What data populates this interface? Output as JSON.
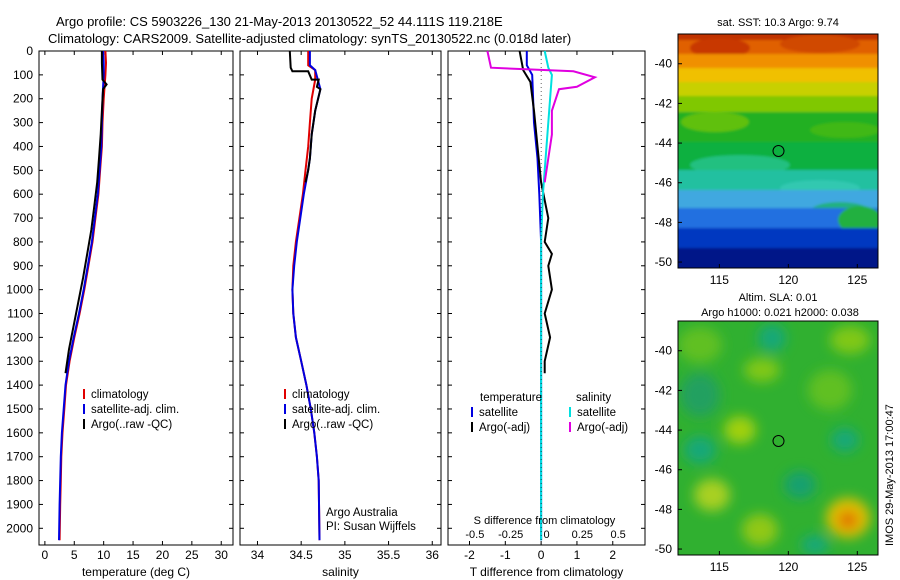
{
  "title_line1": "Argo profile: CS 5903226_130 21-May-2013 20130522_52 44.111S 119.218E",
  "title_line2": "Climatology: CARS2009. Satellite-adjusted climatology: synTS_20130522.nc (0.018d later)",
  "timestamp": "IMOS 29-May-2013 17:00:47",
  "colors": {
    "climatology": "#e00000",
    "satellite": "#0000e0",
    "argo": "#000000",
    "sal_satellite": "#00e0e0",
    "sal_argo": "#e000e0"
  },
  "chart_data": [
    {
      "type": "line",
      "id": "temperature",
      "xlabel": "temperature (deg C)",
      "ylabel": "",
      "xlim": [
        -1,
        32
      ],
      "ylim": [
        2070,
        0
      ],
      "xticks": [
        0,
        5,
        10,
        15,
        20,
        25,
        30
      ],
      "yticks": [
        0,
        100,
        200,
        300,
        400,
        500,
        600,
        700,
        800,
        900,
        1000,
        1100,
        1200,
        1300,
        1400,
        1500,
        1600,
        1700,
        1800,
        1900,
        2000
      ],
      "legend": [
        "climatology",
        "satellite-adj. clim.",
        "Argo(..raw -QC)"
      ],
      "series": [
        {
          "name": "climatology",
          "color": "#e00000",
          "x": [
            10.3,
            10.4,
            10.3,
            10.0,
            9.8,
            9.7,
            9.4,
            9.1,
            8.6,
            8.1,
            7.4,
            6.7,
            5.9,
            5.0,
            4.2,
            3.6,
            3.3,
            3.0,
            2.8,
            2.7,
            2.6,
            2.5
          ],
          "y": [
            0,
            50,
            100,
            200,
            300,
            400,
            500,
            600,
            700,
            800,
            900,
            1000,
            1100,
            1200,
            1300,
            1400,
            1500,
            1600,
            1700,
            1800,
            1900,
            2050
          ]
        },
        {
          "name": "satellite-adj. clim.",
          "color": "#0000e0",
          "x": [
            9.9,
            10.0,
            10.0,
            9.8,
            9.7,
            9.6,
            9.3,
            9.0,
            8.5,
            8.0,
            7.3,
            6.6,
            5.8,
            4.9,
            4.1,
            3.5,
            3.2,
            2.9,
            2.7,
            2.6,
            2.5,
            2.4
          ],
          "y": [
            0,
            50,
            100,
            200,
            300,
            400,
            500,
            600,
            700,
            800,
            900,
            1000,
            1100,
            1200,
            1300,
            1400,
            1500,
            1600,
            1700,
            1800,
            1900,
            2050
          ]
        },
        {
          "name": "Argo(..raw -QC)",
          "color": "#000000",
          "x": [
            9.7,
            9.7,
            9.8,
            10.5,
            9.9,
            9.7,
            9.5,
            9.2,
            8.9,
            8.4,
            7.9,
            7.2,
            6.5,
            5.7,
            4.9,
            4.1,
            3.5
          ],
          "y": [
            0,
            50,
            120,
            140,
            160,
            250,
            350,
            450,
            550,
            650,
            750,
            850,
            950,
            1050,
            1150,
            1250,
            1350
          ]
        }
      ]
    },
    {
      "type": "line",
      "id": "salinity",
      "xlabel": "salinity",
      "ylabel": "",
      "xlim": [
        33.8,
        36.1
      ],
      "ylim": [
        2070,
        0
      ],
      "xticks": [
        34,
        34.5,
        35,
        35.5,
        36
      ],
      "xticklabels": [
        "34",
        "34.5",
        "35",
        "35.5",
        "36"
      ],
      "legend": [
        "climatology",
        "satellite-adj. clim.",
        "Argo(..raw -QC)"
      ],
      "annotation": [
        "Argo Australia",
        "PI: Susan Wijffels"
      ],
      "series": [
        {
          "name": "climatology",
          "color": "#e00000",
          "x": [
            34.58,
            34.58,
            34.66,
            34.66,
            34.62,
            34.6,
            34.58,
            34.55,
            34.52,
            34.48,
            34.44,
            34.41,
            34.4,
            34.41,
            34.44,
            34.5,
            34.56,
            34.61,
            34.65,
            34.68,
            34.7,
            34.71
          ],
          "y": [
            0,
            60,
            80,
            120,
            200,
            300,
            400,
            500,
            600,
            700,
            800,
            900,
            1000,
            1100,
            1200,
            1300,
            1400,
            1500,
            1600,
            1700,
            1800,
            2050
          ]
        },
        {
          "name": "satellite-adj. clim.",
          "color": "#0000e0",
          "x": [
            34.6,
            34.6,
            34.66,
            34.72,
            34.66,
            34.62,
            34.6,
            34.57,
            34.53,
            34.49,
            34.45,
            34.42,
            34.4,
            34.41,
            34.44,
            34.5,
            34.56,
            34.61,
            34.65,
            34.68,
            34.7,
            34.71
          ],
          "y": [
            0,
            60,
            80,
            160,
            250,
            350,
            450,
            520,
            600,
            700,
            800,
            900,
            1000,
            1100,
            1200,
            1300,
            1400,
            1500,
            1600,
            1700,
            1800,
            2050
          ]
        },
        {
          "name": "Argo(..raw -QC)",
          "color": "#000000",
          "x": [
            34.37,
            34.38,
            34.4,
            34.58,
            34.62,
            34.7,
            34.68,
            34.72,
            34.66,
            34.62,
            34.6,
            34.58,
            34.55
          ],
          "y": [
            0,
            70,
            85,
            85,
            120,
            120,
            150,
            160,
            250,
            350,
            450,
            500,
            550
          ]
        }
      ]
    },
    {
      "type": "line",
      "id": "difference",
      "xlabel": "T difference from climatology",
      "top_label": "S difference from climatology",
      "xlim": [
        -2.6,
        2.9
      ],
      "ylim": [
        2070,
        0
      ],
      "xticks": [
        -2,
        -1,
        0,
        1,
        2
      ],
      "xticklabels": [
        "-2",
        "-1",
        "0",
        "1",
        "2"
      ],
      "top_ticks": [
        -0.5,
        -0.25,
        0,
        0.25,
        0.5
      ],
      "top_ticklabels": [
        "-0.5",
        "-0.25",
        "0",
        "0.25",
        "0.5"
      ],
      "legend_temperature": {
        "header": "temperature",
        "items": [
          "satellite",
          "Argo(-adj)"
        ]
      },
      "legend_salinity": {
        "header": "salinity",
        "items": [
          "satellite",
          "Argo(-adj)"
        ]
      },
      "series": [
        {
          "name": "T satellite",
          "color": "#0000e0",
          "x": [
            -0.4,
            -0.4,
            -0.25,
            -0.2,
            -0.1,
            -0.05,
            0.0,
            0.0,
            0.0,
            0.0
          ],
          "y": [
            0,
            60,
            100,
            300,
            450,
            600,
            800,
            1000,
            1400,
            2050
          ]
        },
        {
          "name": "T Argo(-adj)",
          "color": "#000000",
          "x": [
            -0.6,
            -0.5,
            -0.3,
            -0.2,
            -0.1,
            0.0,
            0.2,
            0.1,
            0.3,
            0.2,
            0.3,
            0.1,
            0.25,
            0.1,
            0.1
          ],
          "y": [
            0,
            80,
            130,
            250,
            400,
            550,
            700,
            800,
            850,
            900,
            1000,
            1100,
            1200,
            1300,
            1350
          ]
        },
        {
          "name": "S satellite",
          "color": "#00e0e0",
          "x": [
            0.1,
            0.2,
            0.3,
            0.25,
            0.2,
            0.15,
            0.1,
            0.05,
            0.0,
            0.0,
            0.0
          ],
          "y": [
            0,
            70,
            100,
            200,
            300,
            400,
            500,
            600,
            800,
            1400,
            2050
          ]
        },
        {
          "name": "S Argo(-adj)",
          "color": "#e000e0",
          "x": [
            -1.5,
            -1.4,
            0.9,
            1.5,
            1.0,
            0.5,
            0.3,
            0.3,
            0.2,
            0.1
          ],
          "y": [
            0,
            70,
            85,
            110,
            150,
            160,
            250,
            350,
            450,
            550
          ]
        }
      ]
    },
    {
      "type": "heatmap",
      "id": "sst-map",
      "title": "sat. SST: 10.3 Argo: 9.74",
      "xlim": [
        112,
        126.5
      ],
      "ylim": [
        -50.3,
        -38.5
      ],
      "xticks": [
        115,
        120,
        125
      ],
      "yticks": [
        -40,
        -42,
        -44,
        -46,
        -48,
        -50
      ],
      "marker": {
        "lon": 119.218,
        "lat": -44.111
      }
    },
    {
      "type": "heatmap",
      "id": "sla-map",
      "title": "Altim. SLA: 0.01",
      "subtitle": "Argo h1000: 0.021 h2000: 0.038",
      "xlim": [
        112,
        126.5
      ],
      "ylim": [
        -50.3,
        -38.5
      ],
      "xticks": [
        115,
        120,
        125
      ],
      "yticks": [
        -40,
        -42,
        -44,
        -46,
        -48,
        -50
      ],
      "marker": {
        "lon": 119.218,
        "lat": -44.111
      }
    }
  ]
}
